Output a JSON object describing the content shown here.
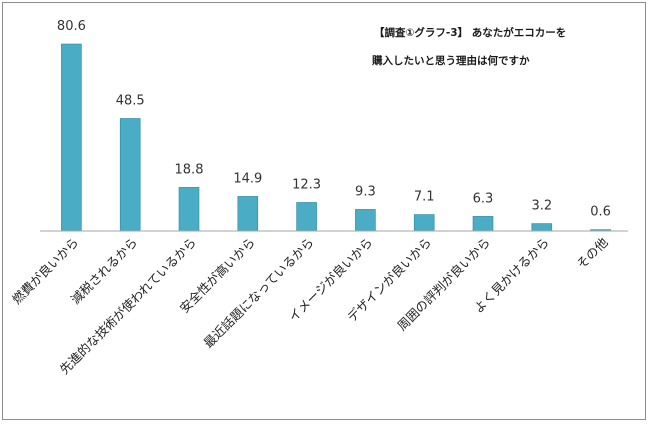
{
  "chart_data": {
    "type": "bar",
    "title_lines": [
      "【調査①グラフ-3】 あなたがエコカーを",
      "購入したいと思う理由は何ですか"
    ],
    "categories": [
      "燃費が良いから",
      "減税されるから",
      "先進的な技術が使われているから",
      "安全性が高いから",
      "最近話題になっているから",
      "イメージが良いから",
      "デザインが良いから",
      "周囲の評判が良いから",
      "よく見かけるから",
      "その他"
    ],
    "values": [
      80.6,
      48.5,
      18.8,
      14.9,
      12.3,
      9.3,
      7.1,
      6.3,
      3.2,
      0.6
    ],
    "value_labels": [
      "80.6",
      "48.5",
      "18.8",
      "14.9",
      "12.3",
      "9.3",
      "7.1",
      "6.3",
      "3.2",
      "0.6"
    ],
    "bar_color": "#4bacc6",
    "bar_edge_color": "#2e8aa3",
    "axis_color": "#a6a6a6",
    "ylim": [
      0,
      90
    ],
    "grid": false,
    "legend": "none"
  }
}
